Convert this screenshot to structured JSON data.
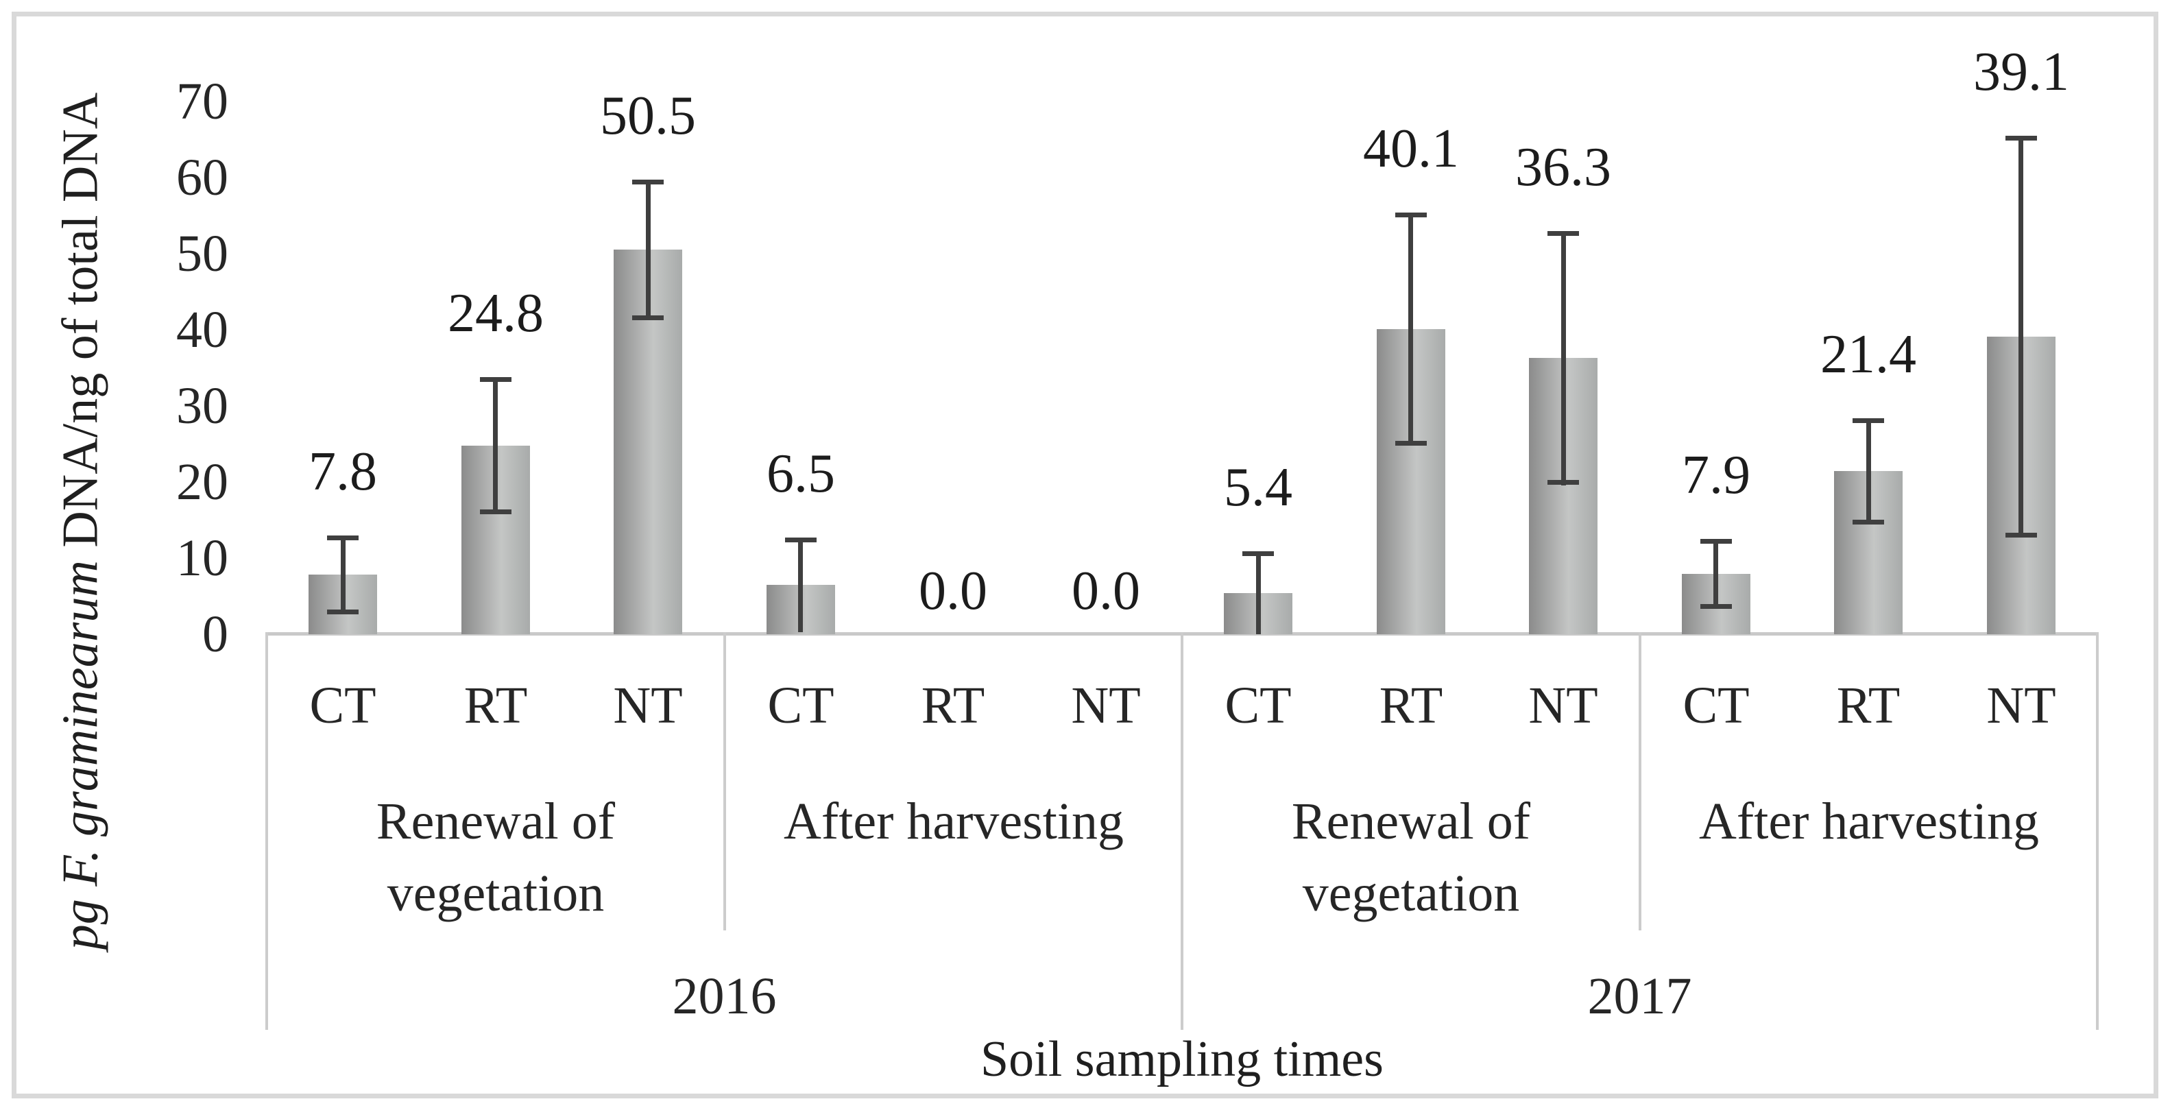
{
  "figure": {
    "background_color": "#ffffff",
    "border_color": "#d9d9d9"
  },
  "chart_data": {
    "type": "bar",
    "title": "",
    "ylabel_italic": "pg F. graminearum",
    "ylabel_regular": " DNA/ng of total DNA",
    "xlabel": "Soil sampling times",
    "ylim": [
      0,
      70
    ],
    "yticks": [
      0,
      10,
      20,
      30,
      40,
      50,
      60,
      70
    ],
    "grid": false,
    "legend": false,
    "bar_gradient": [
      "#8b8b8b",
      "#c4c6c5",
      "#a8abaa"
    ],
    "error_bar_color": "#3f3f3f",
    "axis_line_color": "#c9c9c9",
    "years": [
      {
        "label": "2016",
        "groups": [
          {
            "label": "Renewal of vegetation",
            "label_lines": [
              "Renewal of",
              "vegetation"
            ],
            "treatments": [
              "CT",
              "RT",
              "NT"
            ],
            "values": [
              7.8,
              24.8,
              50.5
            ],
            "errors": [
              5.2,
              9.0,
              9.2
            ],
            "data_labels": [
              "7.8",
              "24.8",
              "50.5"
            ]
          },
          {
            "label": "After harvesting",
            "label_lines": [
              "After harvesting"
            ],
            "treatments": [
              "CT",
              "RT",
              "NT"
            ],
            "values": [
              6.5,
              0.0,
              0.0
            ],
            "errors": [
              6.2,
              null,
              null
            ],
            "data_labels": [
              "6.5",
              "0.0",
              "0.0"
            ]
          }
        ]
      },
      {
        "label": "2017",
        "groups": [
          {
            "label": "Renewal of vegetation",
            "label_lines": [
              "Renewal of",
              "vegetation"
            ],
            "treatments": [
              "CT",
              "RT",
              "NT"
            ],
            "values": [
              5.4,
              40.1,
              36.3
            ],
            "errors": [
              5.5,
              15.3,
              16.7
            ],
            "data_labels": [
              "5.4",
              "40.1",
              "36.3"
            ]
          },
          {
            "label": "After harvesting",
            "label_lines": [
              "After harvesting"
            ],
            "treatments": [
              "CT",
              "RT",
              "NT"
            ],
            "values": [
              7.9,
              21.4,
              39.1
            ],
            "errors": [
              4.6,
              7.0,
              26.4
            ],
            "data_labels": [
              "7.9",
              "21.4",
              "39.1"
            ]
          }
        ]
      }
    ]
  }
}
